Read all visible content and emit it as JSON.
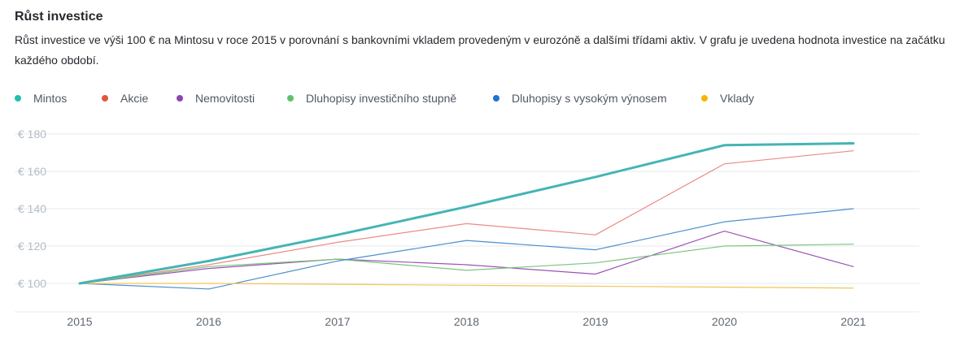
{
  "header": {
    "title": "Růst investice",
    "description": "Růst investice ve výši 100 € na Mintosu v roce 2015 v porovnání s bankovními vkladem provedeným v eurozóně a dalšími třídami aktiv. V grafu je uvedena hodnota investice na začátku každého období."
  },
  "chart_data": {
    "type": "line",
    "title": "",
    "xlabel": "",
    "ylabel": "",
    "x": [
      "2015",
      "2016",
      "2017",
      "2018",
      "2019",
      "2020",
      "2021"
    ],
    "ylim": [
      90,
      185
    ],
    "yticks": [
      100,
      120,
      140,
      160,
      180
    ],
    "ytick_labels": [
      "€ 100",
      "€ 120",
      "€ 140",
      "€ 160",
      "€ 180"
    ],
    "grid": true,
    "legend_position": "top",
    "series": [
      {
        "name": "Mintos",
        "color": "#45b4b5",
        "width": 3,
        "values": [
          100,
          112,
          126,
          141,
          157,
          174,
          175
        ]
      },
      {
        "name": "Akcie",
        "color": "#ea8b84",
        "width": 1.2,
        "values": [
          100,
          110,
          122,
          132,
          126,
          164,
          171
        ]
      },
      {
        "name": "Nemovitosti",
        "color": "#9b54b8",
        "width": 1.2,
        "values": [
          100,
          108,
          113,
          110,
          105,
          128,
          109
        ]
      },
      {
        "name": "Dluhopisy investičního stupně",
        "color": "#78c67a",
        "width": 1.2,
        "values": [
          100,
          109,
          113,
          107,
          111,
          120,
          121
        ]
      },
      {
        "name": "Dluhopisy s vysokým výnosem",
        "color": "#4a8fd1",
        "width": 1.2,
        "values": [
          100,
          97,
          112,
          123,
          118,
          133,
          140
        ]
      },
      {
        "name": "Vklady",
        "color": "#f3c552",
        "width": 1.2,
        "values": [
          100,
          100,
          99.5,
          99,
          98.5,
          98,
          97.5
        ]
      }
    ]
  },
  "legend": {
    "dot_colors": [
      "#1fbfb0",
      "#e2563b",
      "#8e44ad",
      "#5ec269",
      "#1f73d6",
      "#f7b500"
    ]
  }
}
